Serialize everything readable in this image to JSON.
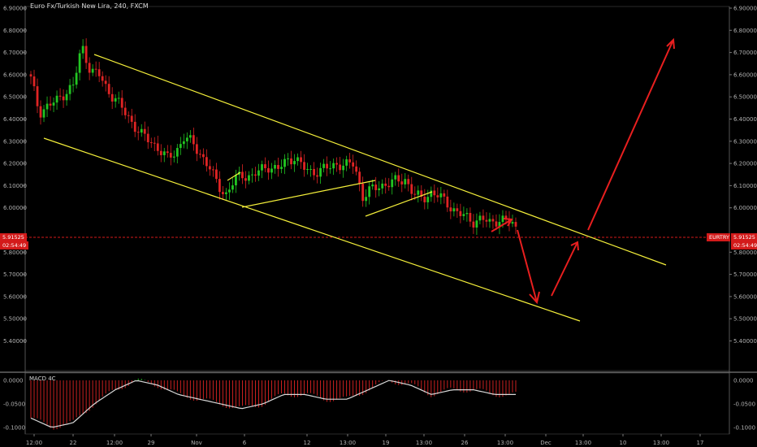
{
  "title": "Euro Fx/Turkish New Lira, 240, FXCM",
  "price": {
    "last": "5.91525",
    "countdown": "02:54:49",
    "symbol_tag": "EURTRY",
    "yticks": [
      "6.90000",
      "6.80000",
      "6.70000",
      "6.60000",
      "6.50000",
      "6.40000",
      "6.30000",
      "6.20000",
      "6.10000",
      "6.00000",
      "5.80000",
      "5.70000",
      "5.60000",
      "5.50000",
      "5.40000"
    ]
  },
  "macd": {
    "label": "MACD 4C",
    "yticks": [
      "0.0000",
      "-0.0500",
      "-0.1000"
    ]
  },
  "xticks": [
    "12:00",
    "22",
    "12:00",
    "29",
    "Nov",
    "6",
    "12",
    "13:00",
    "19",
    "13:00",
    "26",
    "13:00",
    "Dec",
    "13:00",
    "10",
    "13:00",
    "17"
  ],
  "colors": {
    "up": "#22c522",
    "down": "#e02424",
    "channel": "#f4ef3a",
    "arrow": "#e81f1f",
    "macd_line": "#d8d8d8"
  },
  "chart_data": {
    "type": "candlestick",
    "title": "Euro Fx/Turkish New Lira, 240, FXCM",
    "ylim": [
      5.3,
      6.95
    ],
    "last_price": 5.91525,
    "close_series_approx": [
      6.58,
      6.43,
      6.46,
      6.48,
      6.52,
      6.55,
      6.73,
      6.62,
      6.6,
      6.53,
      6.49,
      6.43,
      6.38,
      6.33,
      6.3,
      6.27,
      6.22,
      6.25,
      6.32,
      6.29,
      6.24,
      6.18,
      6.1,
      6.06,
      6.13,
      6.15,
      6.14,
      6.17,
      6.19,
      6.17,
      6.21,
      6.23,
      6.18,
      6.16,
      6.17,
      6.18,
      6.2,
      6.19,
      6.2,
      6.05,
      6.08,
      6.1,
      6.11,
      6.12,
      6.13,
      6.06,
      6.04,
      6.07,
      6.05,
      6.02,
      5.98,
      5.96,
      5.94,
      5.95,
      5.93,
      5.95,
      5.94,
      5.92
    ],
    "channel_upper": [
      [
        6.73
      ],
      [
        5.79
      ]
    ],
    "channel_lower": [
      [
        6.36
      ],
      [
        5.54
      ]
    ],
    "projected_path": [
      5.92,
      5.62,
      5.91,
      6.81
    ],
    "macd_approx": [
      -0.08,
      -0.1,
      -0.09,
      -0.05,
      -0.02,
      0.0,
      -0.01,
      -0.03,
      -0.04,
      -0.05,
      -0.06,
      -0.05,
      -0.03,
      -0.03,
      -0.04,
      -0.04,
      -0.02,
      0.0,
      -0.01,
      -0.03,
      -0.02,
      -0.02,
      -0.03,
      -0.03
    ]
  }
}
